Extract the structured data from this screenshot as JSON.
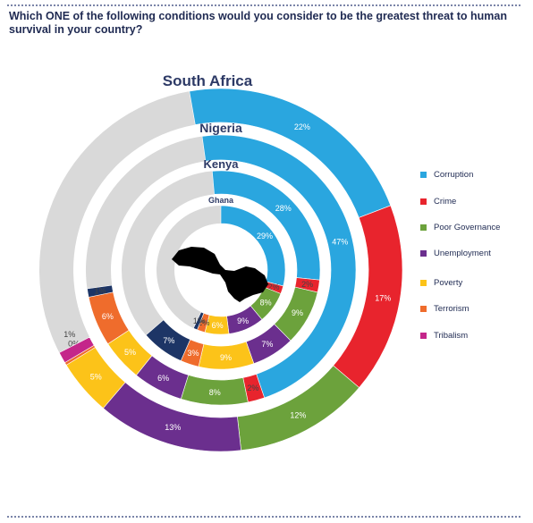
{
  "question": "Which ONE of the following conditions would you consider to be the greatest threat to human survival in your country?",
  "categories": [
    {
      "key": "corruption",
      "label": "Corruption",
      "color": "#2aa6df"
    },
    {
      "key": "crime",
      "label": "Crime",
      "color": "#e8242d"
    },
    {
      "key": "poor_governance",
      "label": "Poor Governance",
      "color": "#6ca23c"
    },
    {
      "key": "unemployment",
      "label": "Unemployment",
      "color": "#6b2f8e"
    },
    {
      "key": "poverty",
      "label": "Poverty",
      "color": "#fcc319"
    },
    {
      "key": "terrorism",
      "label": "Terrorism",
      "color": "#ef6c2c"
    },
    {
      "key": "tribalism",
      "label": "Tribalism",
      "color": "#c4268a"
    }
  ],
  "extra_colors": {
    "other": "#1d3566",
    "remainder": "#d9d9d9"
  },
  "chart_data": {
    "type": "radial-bar",
    "title": "Which ONE of the following conditions would you consider to be the greatest threat to human survival in your country?",
    "series": [
      {
        "name": "South Africa",
        "values": {
          "corruption": 22,
          "crime": 17,
          "poor_governance": 12,
          "unemployment": 13,
          "poverty": 5,
          "terrorism": 0,
          "tribalism": 1
        },
        "labels": {
          "corruption": "22%",
          "crime": "17%",
          "poor_governance": "12%",
          "unemployment": "13%",
          "poverty": "5%",
          "terrorism": "0%",
          "tribalism": "1%"
        }
      },
      {
        "name": "Nigeria",
        "values": {
          "corruption": 47,
          "crime": 2,
          "poor_governance": 8,
          "unemployment": 6,
          "poverty": 5,
          "terrorism": 6,
          "other": 1
        },
        "labels": {
          "corruption": "47%",
          "crime": "2%",
          "poor_governance": "8%",
          "unemployment": "6%",
          "poverty": "5%",
          "terrorism": "6%",
          "other": "1%"
        }
      },
      {
        "name": "Kenya",
        "values": {
          "corruption": 28,
          "crime": 2,
          "poor_governance": 9,
          "unemployment": 7,
          "poverty": 9,
          "terrorism": 3,
          "other": 7
        },
        "labels": {
          "corruption": "28%",
          "crime": "2%",
          "poor_governance": "9%",
          "unemployment": "7%",
          "poverty": "9%",
          "terrorism": "3%",
          "other": "7%"
        }
      },
      {
        "name": "Ghana",
        "values": {
          "corruption": 29,
          "crime": 2,
          "poor_governance": 8,
          "unemployment": 9,
          "poverty": 6,
          "terrorism": 2,
          "other": 1
        },
        "labels": {
          "corruption": "29%",
          "crime": "2%",
          "poor_governance": "8%",
          "unemployment": "9%",
          "poverty": "6%",
          "terrorism": "2%",
          "other": "1%"
        }
      }
    ],
    "segment_order": [
      "corruption",
      "crime",
      "poor_governance",
      "unemployment",
      "poverty",
      "terrorism",
      "other",
      "tribalism"
    ],
    "legend_position": "right"
  }
}
